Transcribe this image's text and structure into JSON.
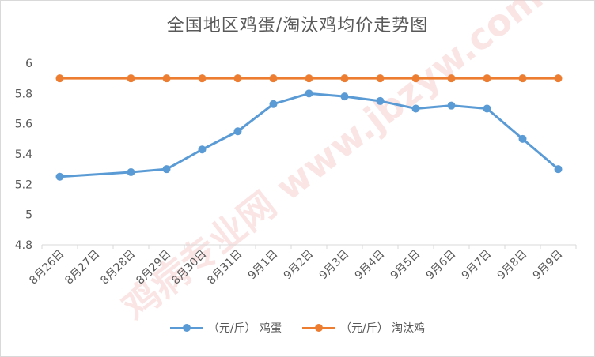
{
  "chart_data": {
    "type": "line",
    "title": "全国地区鸡蛋/淘汰鸡均价走势图",
    "categories": [
      "8月26日",
      "8月27日",
      "8月28日",
      "8月29日",
      "8月30日",
      "8月31日",
      "9月1日",
      "9月2日",
      "9月3日",
      "9月4日",
      "9月5日",
      "9月6日",
      "9月7日",
      "9月8日",
      "9月9日"
    ],
    "y_ticks": [
      "4.8",
      "5",
      "5.2",
      "5.4",
      "5.6",
      "5.8",
      "6"
    ],
    "ylim": [
      4.8,
      6.0
    ],
    "grid": false,
    "legend_position": "bottom",
    "series": [
      {
        "name": "（元/斤） 鸡蛋",
        "color": "#5b9bd5",
        "points": [
          {
            "x": "8月26日",
            "y": 5.25
          },
          {
            "x": "8月28日",
            "y": 5.28
          },
          {
            "x": "8月29日",
            "y": 5.3
          },
          {
            "x": "8月30日",
            "y": 5.43
          },
          {
            "x": "8月31日",
            "y": 5.55
          },
          {
            "x": "9月1日",
            "y": 5.73
          },
          {
            "x": "9月2日",
            "y": 5.8
          },
          {
            "x": "9月3日",
            "y": 5.78
          },
          {
            "x": "9月4日",
            "y": 5.75
          },
          {
            "x": "9月5日",
            "y": 5.7
          },
          {
            "x": "9月6日",
            "y": 5.72
          },
          {
            "x": "9月7日",
            "y": 5.7
          },
          {
            "x": "9月8日",
            "y": 5.5
          },
          {
            "x": "9月9日",
            "y": 5.3
          }
        ]
      },
      {
        "name": "（元/斤） 淘汰鸡",
        "color": "#ed7d31",
        "points": [
          {
            "x": "8月26日",
            "y": 5.9
          },
          {
            "x": "8月28日",
            "y": 5.9
          },
          {
            "x": "8月29日",
            "y": 5.9
          },
          {
            "x": "8月30日",
            "y": 5.9
          },
          {
            "x": "8月31日",
            "y": 5.9
          },
          {
            "x": "9月1日",
            "y": 5.9
          },
          {
            "x": "9月2日",
            "y": 5.9
          },
          {
            "x": "9月3日",
            "y": 5.9
          },
          {
            "x": "9月4日",
            "y": 5.9
          },
          {
            "x": "9月5日",
            "y": 5.9
          },
          {
            "x": "9月6日",
            "y": 5.9
          },
          {
            "x": "9月7日",
            "y": 5.9
          },
          {
            "x": "9月8日",
            "y": 5.9
          },
          {
            "x": "9月9日",
            "y": 5.9
          }
        ]
      }
    ]
  },
  "watermark": {
    "text": "鸡病专业网 www.jbzyw.com"
  }
}
